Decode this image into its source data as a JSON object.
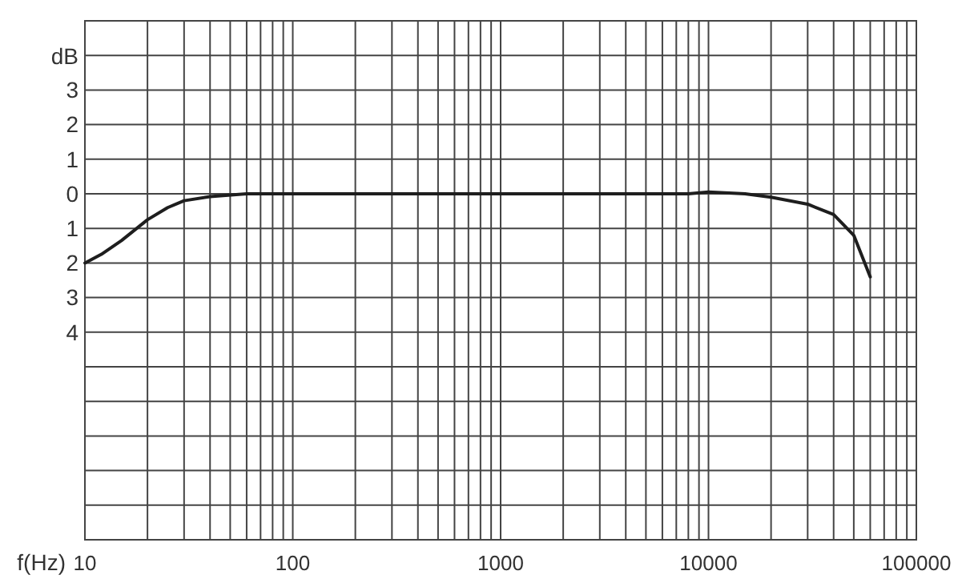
{
  "chart_data": {
    "type": "line",
    "xlabel": "f(Hz)",
    "ylabel": "dB",
    "series": [
      {
        "color": "#1e1e1e",
        "x": [
          10,
          12,
          15,
          20,
          25,
          30,
          40,
          60,
          100,
          1000,
          8000,
          10000,
          15000,
          20000,
          30000,
          40000,
          50000,
          60000
        ],
        "values": [
          -2,
          -1.75,
          -1.35,
          -0.75,
          -0.4,
          -0.2,
          -0.08,
          0,
          0,
          0,
          0,
          0.05,
          0,
          -0.1,
          -0.3,
          -0.6,
          -1.2,
          -2.4
        ]
      }
    ],
    "log": "x",
    "xlim": [
      10,
      100000
    ],
    "ylim": [
      -10,
      5
    ],
    "xticks": [
      10,
      {
        "value": 20,
        "label": null
      },
      {
        "value": 30,
        "label": null
      },
      {
        "value": 40,
        "label": null
      },
      {
        "value": 50,
        "label": null
      },
      {
        "value": 60,
        "label": null
      },
      {
        "value": 70,
        "label": null
      },
      {
        "value": 80,
        "label": null
      },
      {
        "value": 90,
        "label": null
      },
      100,
      {
        "value": 200,
        "label": null
      },
      {
        "value": 300,
        "label": null
      },
      {
        "value": 400,
        "label": null
      },
      {
        "value": 500,
        "label": null
      },
      {
        "value": 600,
        "label": null
      },
      {
        "value": 700,
        "label": null
      },
      {
        "value": 800,
        "label": null
      },
      {
        "value": 900,
        "label": null
      },
      1000,
      {
        "value": 2000,
        "label": null
      },
      {
        "value": 3000,
        "label": null
      },
      {
        "value": 4000,
        "label": null
      },
      {
        "value": 5000,
        "label": null
      },
      {
        "value": 6000,
        "label": null
      },
      {
        "value": 7000,
        "label": null
      },
      {
        "value": 8000,
        "label": null
      },
      {
        "value": 9000,
        "label": null
      },
      10000,
      {
        "value": 20000,
        "label": null
      },
      {
        "value": 30000,
        "label": null
      },
      {
        "value": 40000,
        "label": null
      },
      {
        "value": 50000,
        "label": null
      },
      {
        "value": 60000,
        "label": null
      },
      {
        "value": 70000,
        "label": null
      },
      {
        "value": 80000,
        "label": null
      },
      {
        "value": 90000,
        "label": null
      },
      100000
    ],
    "yticks": [
      {
        "value": -10,
        "label": null
      },
      {
        "value": -9,
        "label": null
      },
      {
        "value": -8,
        "label": null
      },
      {
        "value": -7,
        "label": null
      },
      {
        "value": -6,
        "label": null
      },
      {
        "value": -5,
        "label": null
      },
      {
        "value": -4,
        "label": "4"
      },
      {
        "value": -3,
        "label": "3"
      },
      {
        "value": -2,
        "label": "2"
      },
      {
        "value": -1,
        "label": "1"
      },
      0,
      1,
      2,
      3,
      {
        "value": 4,
        "label": null
      },
      {
        "value": 5,
        "label": null
      }
    ],
    "grid": true,
    "marker": "none",
    "line_style": "solid"
  }
}
